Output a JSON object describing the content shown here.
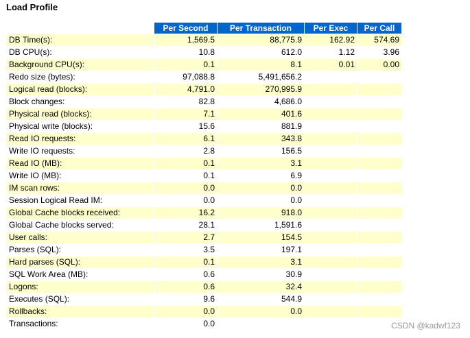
{
  "page": {
    "title": "Load Profile",
    "watermark": "CSDN @kadwf123"
  },
  "table": {
    "headers": [
      "",
      "Per Second",
      "Per Transaction",
      "Per Exec",
      "Per Call"
    ],
    "rows": [
      [
        "DB Time(s):",
        "1,569.5",
        "88,775.9",
        "162.92",
        "574.69"
      ],
      [
        "DB CPU(s):",
        "10.8",
        "612.0",
        "1.12",
        "3.96"
      ],
      [
        "Background CPU(s):",
        "0.1",
        "8.1",
        "0.01",
        "0.00"
      ],
      [
        "Redo size (bytes):",
        "97,088.8",
        "5,491,656.2",
        "",
        ""
      ],
      [
        "Logical read (blocks):",
        "4,791.0",
        "270,995.9",
        "",
        ""
      ],
      [
        "Block changes:",
        "82.8",
        "4,686.0",
        "",
        ""
      ],
      [
        "Physical read (blocks):",
        "7.1",
        "401.6",
        "",
        ""
      ],
      [
        "Physical write (blocks):",
        "15.6",
        "881.9",
        "",
        ""
      ],
      [
        "Read IO requests:",
        "6.1",
        "343.8",
        "",
        ""
      ],
      [
        "Write IO requests:",
        "2.8",
        "156.5",
        "",
        ""
      ],
      [
        "Read IO (MB):",
        "0.1",
        "3.1",
        "",
        ""
      ],
      [
        "Write IO (MB):",
        "0.1",
        "6.9",
        "",
        ""
      ],
      [
        "IM scan rows:",
        "0.0",
        "0.0",
        "",
        ""
      ],
      [
        "Session Logical Read IM:",
        "0.0",
        "0.0",
        "",
        ""
      ],
      [
        "Global Cache blocks received:",
        "16.2",
        "918.0",
        "",
        ""
      ],
      [
        "Global Cache blocks served:",
        "28.1",
        "1,591.6",
        "",
        ""
      ],
      [
        "User calls:",
        "2.7",
        "154.5",
        "",
        ""
      ],
      [
        "Parses (SQL):",
        "3.5",
        "197.1",
        "",
        ""
      ],
      [
        "Hard parses (SQL):",
        "0.1",
        "3.1",
        "",
        ""
      ],
      [
        "SQL Work Area (MB):",
        "0.6",
        "30.9",
        "",
        ""
      ],
      [
        "Logons:",
        "0.6",
        "32.4",
        "",
        ""
      ],
      [
        "Executes (SQL):",
        "9.6",
        "544.9",
        "",
        ""
      ],
      [
        "Rollbacks:",
        "0.0",
        "0.0",
        "",
        ""
      ],
      [
        "Transactions:",
        "0.0",
        "",
        "",
        ""
      ]
    ]
  },
  "colors": {
    "header_bg": "#0066cc",
    "header_text": "#ffffff",
    "row_highlight": "#ffffcc",
    "row_plain": "#ffffff",
    "watermark": "#9a9a9a"
  }
}
